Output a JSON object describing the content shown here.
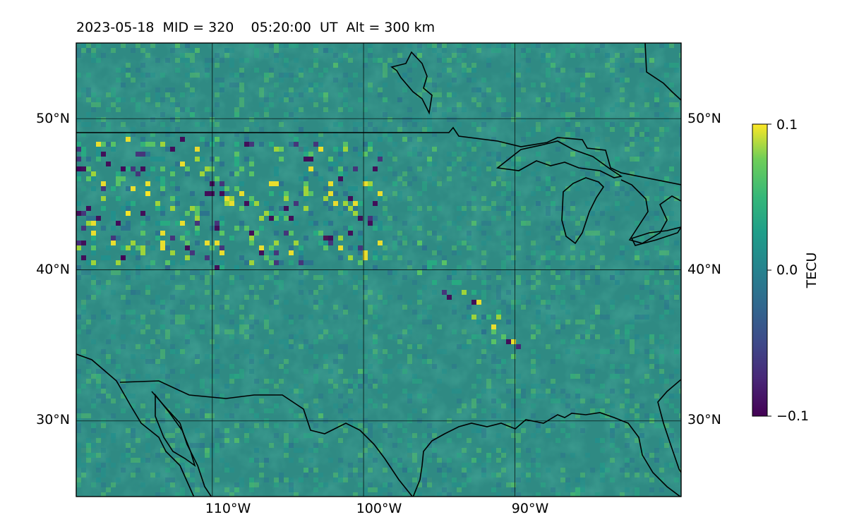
{
  "figure": {
    "title": "2023-05-18  MID = 320    05:20:00  UT  Alt = 300 km"
  },
  "map": {
    "extent": {
      "lon": [
        -119,
        -79
      ],
      "lat": [
        25,
        55
      ]
    },
    "gridlines": {
      "lon": [
        -110,
        -100,
        -90
      ],
      "lat": [
        30,
        40,
        50
      ]
    },
    "lon_ticks": [
      "110°W",
      "100°W",
      "90°W"
    ],
    "lat_ticks": [
      "30°N",
      "40°N",
      "50°N"
    ],
    "colormap": "viridis",
    "field_mean_color": "#2f8a83"
  },
  "colorbar": {
    "label": "TECU",
    "max_label": "0.1",
    "mid_label": "0.0",
    "min_label": "−0.1",
    "range": [
      -0.1,
      0.1
    ]
  }
}
